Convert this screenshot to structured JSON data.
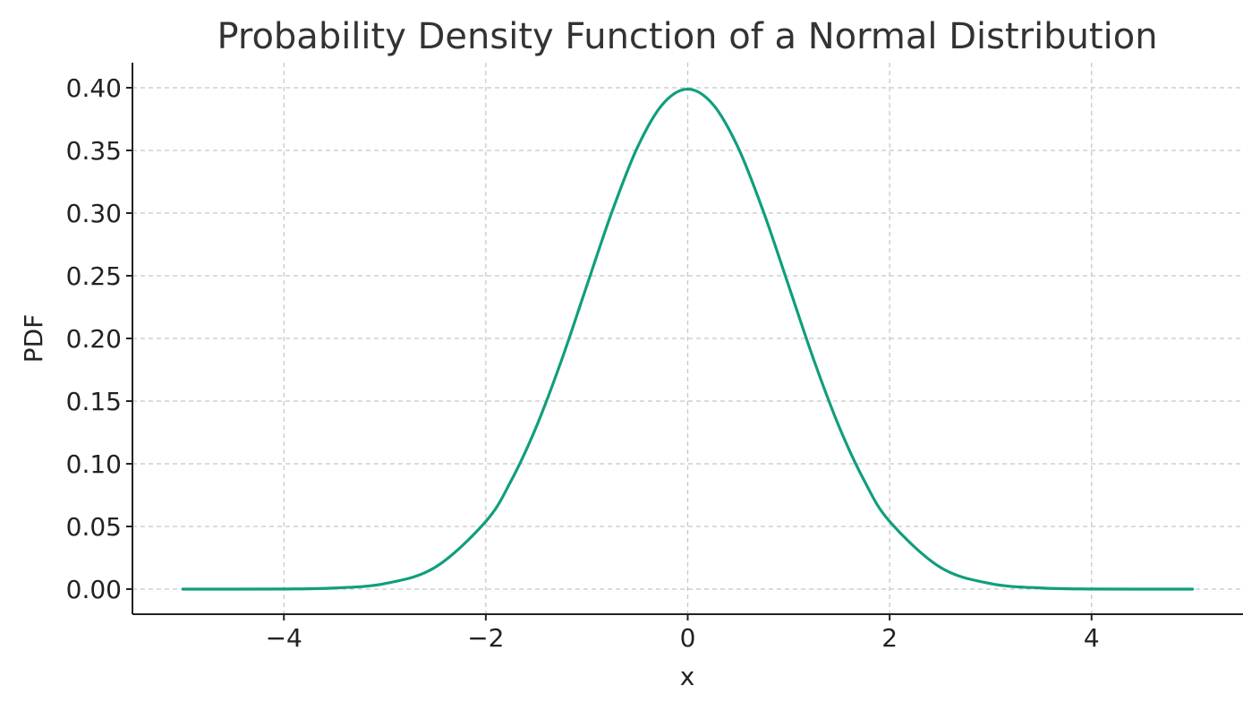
{
  "chart_data": {
    "type": "line",
    "title": "Probability Density Function of a Normal Distribution",
    "xlabel": "x",
    "ylabel": "PDF",
    "xlim": [
      -5.5,
      5.5
    ],
    "ylim": [
      -0.02,
      0.42
    ],
    "x_ticks": [
      -4,
      -2,
      0,
      2,
      4
    ],
    "x_tick_labels": [
      "−4",
      "−2",
      "0",
      "2",
      "4"
    ],
    "y_ticks": [
      0.0,
      0.05,
      0.1,
      0.15,
      0.2,
      0.25,
      0.3,
      0.35,
      0.4
    ],
    "y_tick_labels": [
      "0.00",
      "0.05",
      "0.10",
      "0.15",
      "0.20",
      "0.25",
      "0.30",
      "0.35",
      "0.40"
    ],
    "grid": true,
    "series": [
      {
        "color": "#119e7d",
        "x": [
          -5,
          -4.5,
          -4,
          -3.5,
          -3,
          -2.5,
          -2,
          -1.75,
          -1.5,
          -1.25,
          -1,
          -0.75,
          -0.5,
          -0.25,
          0,
          0.25,
          0.5,
          0.75,
          1,
          1.25,
          1.5,
          1.75,
          2,
          2.5,
          3,
          3.5,
          4,
          4.5,
          5
        ],
        "y": [
          0.0,
          0.0,
          0.0001,
          0.0009,
          0.0044,
          0.0175,
          0.054,
          0.0863,
          0.1295,
          0.1826,
          0.242,
          0.3011,
          0.3521,
          0.3867,
          0.3989,
          0.3867,
          0.3521,
          0.3011,
          0.242,
          0.1826,
          0.1295,
          0.0863,
          0.054,
          0.0175,
          0.0044,
          0.0009,
          0.0001,
          0.0,
          0.0
        ]
      }
    ]
  }
}
